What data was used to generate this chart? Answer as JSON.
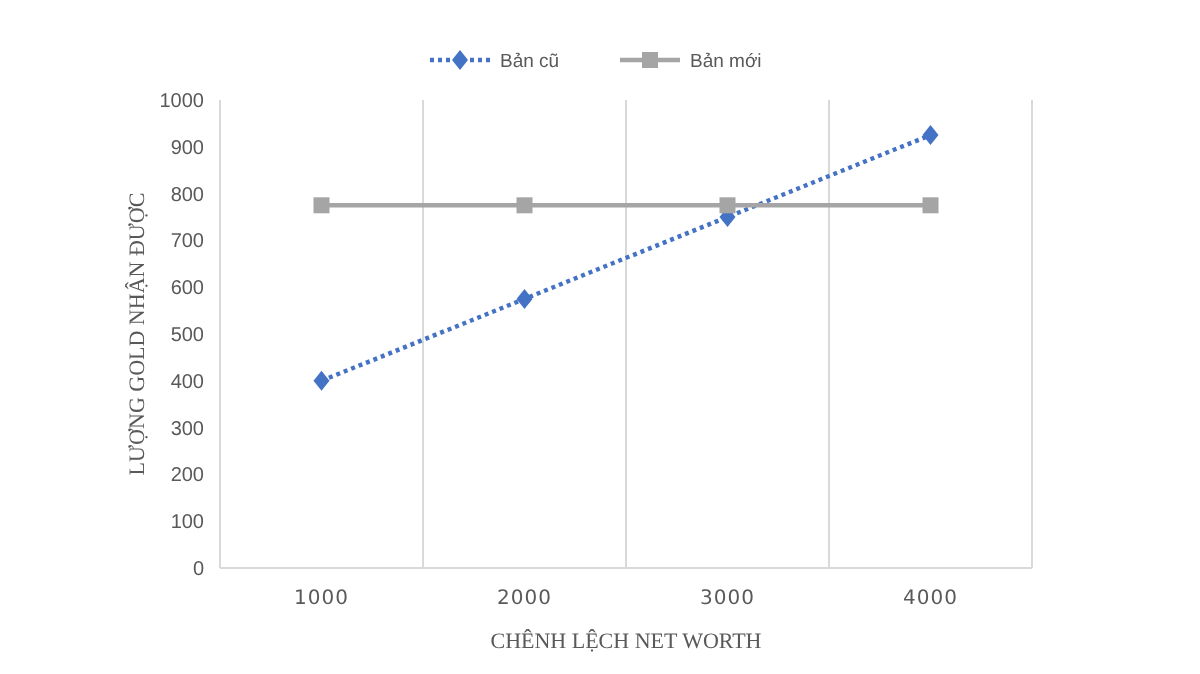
{
  "chart_data": {
    "type": "line",
    "xlabel": "CHÊNH LỆCH NET WORTH",
    "ylabel": "LƯỢNG GOLD NHẬN ĐƯỢC",
    "categories": [
      "1000",
      "2000",
      "3000",
      "4000"
    ],
    "ylim": [
      0,
      1000
    ],
    "yticks": [
      0,
      100,
      200,
      300,
      400,
      500,
      600,
      700,
      800,
      900,
      1000
    ],
    "grid": "x",
    "legend": "top",
    "series": [
      {
        "name": "Bản cũ",
        "color": "#4472c4",
        "values": [
          400,
          575,
          750,
          925
        ],
        "marker": "diamond",
        "line_style": "dotted"
      },
      {
        "name": "Bản mới",
        "color": "#a5a5a5",
        "values": [
          775,
          775,
          775,
          775
        ],
        "marker": "square",
        "line_style": "solid"
      }
    ]
  }
}
